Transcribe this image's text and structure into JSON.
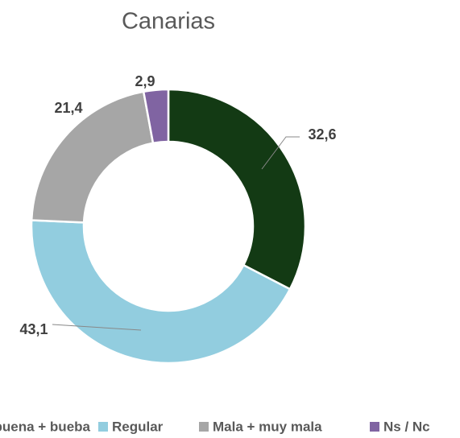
{
  "chart_data": {
    "type": "donut",
    "title": "Canarias",
    "categories": [
      "Muy buena + bueba",
      "Regular",
      "Mala + muy mala",
      "Ns / Nc"
    ],
    "values": [
      32.6,
      43.1,
      21.4,
      2.9
    ],
    "value_labels": [
      "32,6",
      "43,1",
      "21,4",
      "2,9"
    ],
    "colors": [
      "#133a14",
      "#92cddf",
      "#a6a6a6",
      "#8064a2"
    ],
    "legend": "bottom"
  }
}
